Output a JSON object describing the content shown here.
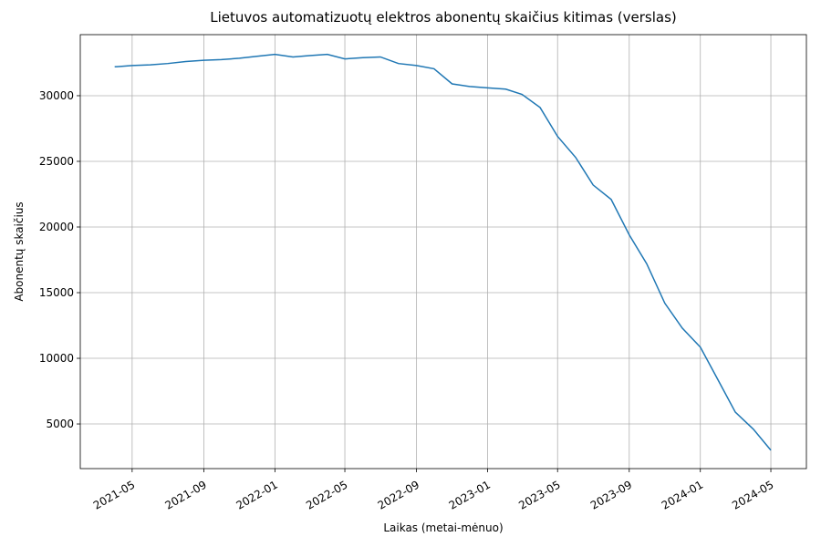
{
  "chart_data": {
    "type": "line",
    "title": "Lietuvos automatizuotų elektros abonentų skaičius kitimas (verslas)",
    "x_label": "Laikas (metai-mėnuo)",
    "y_label": "Abonentų skaičius",
    "x": [
      "2021-04",
      "2021-05",
      "2021-06",
      "2021-07",
      "2021-08",
      "2021-09",
      "2021-10",
      "2021-11",
      "2021-12",
      "2022-01",
      "2022-02",
      "2022-03",
      "2022-04",
      "2022-05",
      "2022-06",
      "2022-07",
      "2022-08",
      "2022-09",
      "2022-10",
      "2022-11",
      "2022-12",
      "2023-01",
      "2023-02",
      "2023-03",
      "2023-04",
      "2023-05",
      "2023-06",
      "2023-07",
      "2023-08",
      "2023-09",
      "2023-10",
      "2023-11",
      "2023-12",
      "2024-01",
      "2024-02",
      "2024-03",
      "2024-04",
      "2024-05"
    ],
    "series": [
      {
        "name": "Abonentų skaičius",
        "color": "#1f77b4",
        "values": [
          32200,
          32300,
          32350,
          32450,
          32600,
          32700,
          32750,
          32850,
          33000,
          33150,
          32950,
          33050,
          33150,
          32800,
          32900,
          32950,
          32450,
          32300,
          32050,
          30900,
          30700,
          30600,
          30500,
          30100,
          29100,
          26900,
          25300,
          23200,
          22100,
          19400,
          17200,
          14200,
          12300,
          10850,
          8300,
          5900,
          4600,
          3000
        ]
      }
    ],
    "xlim": [
      "2021-02",
      "2024-07"
    ],
    "xticks": [
      "2021-05",
      "2021-09",
      "2022-01",
      "2022-05",
      "2022-09",
      "2023-01",
      "2023-05",
      "2023-09",
      "2024-01",
      "2024-05"
    ],
    "ylim": [
      1600,
      34650
    ],
    "yticks": [
      5000,
      10000,
      15000,
      20000,
      25000,
      30000
    ],
    "grid": true
  }
}
